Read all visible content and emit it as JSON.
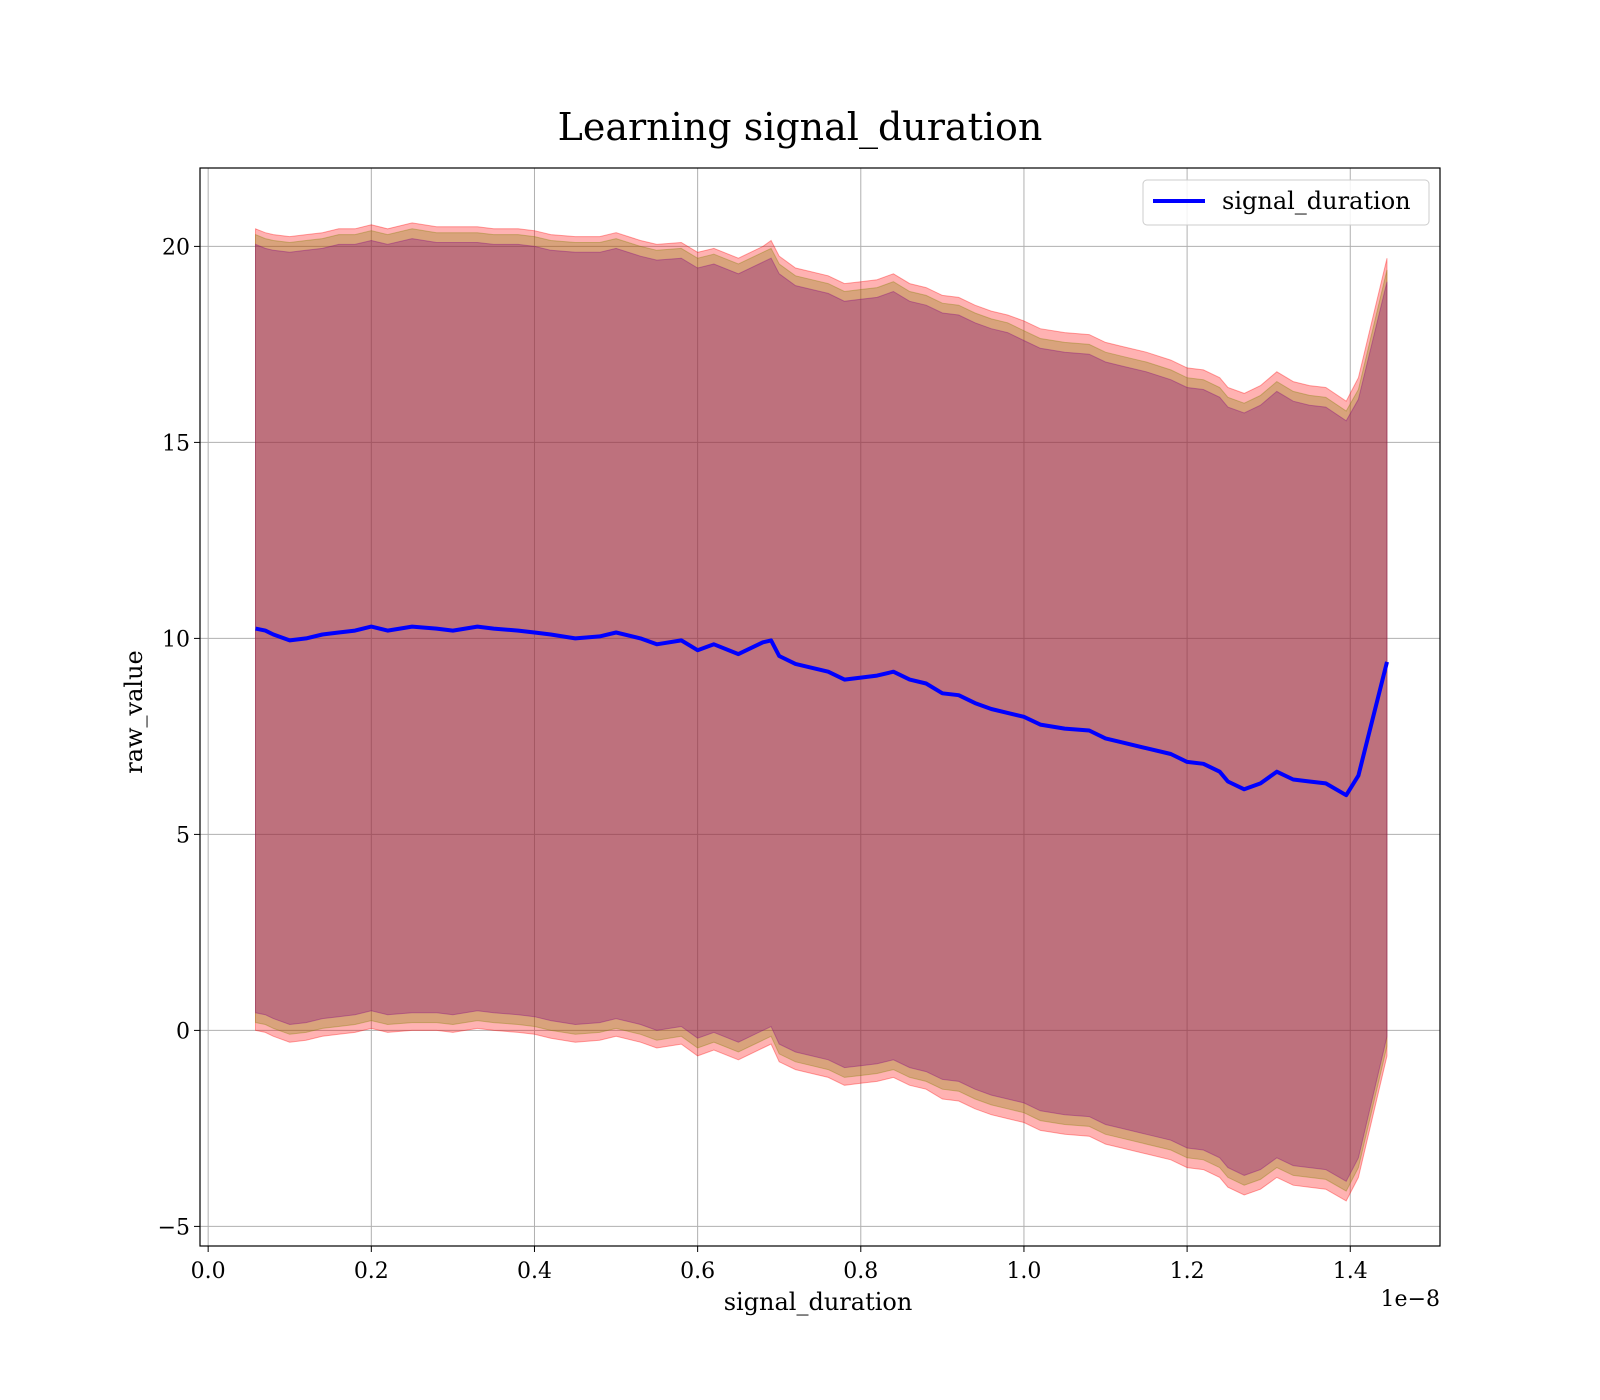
{
  "chart_data": {
    "type": "line",
    "title": "Learning signal_duration",
    "xlabel": "signal_duration",
    "ylabel": "raw_value",
    "x_multiplier_label": "1e−8",
    "xlim": [
      -0.01,
      1.51
    ],
    "ylim": [
      -5.5,
      22.0
    ],
    "grid": true,
    "legend_position": "top-right",
    "x_ticks": [
      {
        "v": 0.0,
        "label": "0.0"
      },
      {
        "v": 0.2,
        "label": "0.2"
      },
      {
        "v": 0.4,
        "label": "0.4"
      },
      {
        "v": 0.6,
        "label": "0.6"
      },
      {
        "v": 0.8,
        "label": "0.8"
      },
      {
        "v": 1.0,
        "label": "1.0"
      },
      {
        "v": 1.2,
        "label": "1.2"
      },
      {
        "v": 1.4,
        "label": "1.4"
      }
    ],
    "y_ticks": [
      {
        "v": -5,
        "label": "−5"
      },
      {
        "v": 0,
        "label": "0"
      },
      {
        "v": 5,
        "label": "5"
      },
      {
        "v": 10,
        "label": "10"
      },
      {
        "v": 15,
        "label": "15"
      },
      {
        "v": 20,
        "label": "20"
      }
    ],
    "series": [
      {
        "name": "signal_duration",
        "color": "#0000ff",
        "x": [
          0.058,
          0.07,
          0.08,
          0.1,
          0.12,
          0.14,
          0.16,
          0.18,
          0.2,
          0.22,
          0.25,
          0.28,
          0.3,
          0.33,
          0.35,
          0.38,
          0.4,
          0.42,
          0.45,
          0.48,
          0.5,
          0.53,
          0.55,
          0.58,
          0.6,
          0.62,
          0.65,
          0.68,
          0.69,
          0.7,
          0.72,
          0.74,
          0.76,
          0.78,
          0.8,
          0.82,
          0.84,
          0.86,
          0.88,
          0.9,
          0.92,
          0.94,
          0.96,
          0.98,
          1.0,
          1.02,
          1.05,
          1.08,
          1.1,
          1.12,
          1.15,
          1.18,
          1.2,
          1.22,
          1.24,
          1.25,
          1.27,
          1.29,
          1.31,
          1.33,
          1.35,
          1.37,
          1.395,
          1.41,
          1.445
        ],
        "y": [
          10.25,
          10.2,
          10.1,
          9.95,
          10.0,
          10.1,
          10.15,
          10.2,
          10.3,
          10.2,
          10.3,
          10.25,
          10.2,
          10.3,
          10.25,
          10.2,
          10.15,
          10.1,
          10.0,
          10.05,
          10.15,
          10.0,
          9.85,
          9.95,
          9.7,
          9.85,
          9.6,
          9.9,
          9.95,
          9.55,
          9.35,
          9.25,
          9.15,
          8.95,
          9.0,
          9.05,
          9.15,
          8.95,
          8.85,
          8.6,
          8.55,
          8.35,
          8.2,
          8.1,
          8.0,
          7.8,
          7.7,
          7.65,
          7.45,
          7.35,
          7.2,
          7.05,
          6.85,
          6.8,
          6.6,
          6.35,
          6.15,
          6.3,
          6.6,
          6.4,
          6.35,
          6.3,
          6.0,
          6.5,
          9.4
        ]
      }
    ],
    "bands": [
      {
        "color": "#ff0000",
        "opacity": 0.3,
        "upper": [
          20.45,
          20.35,
          20.3,
          20.25,
          20.3,
          20.35,
          20.45,
          20.45,
          20.55,
          20.45,
          20.6,
          20.5,
          20.5,
          20.5,
          20.45,
          20.45,
          20.4,
          20.3,
          20.25,
          20.25,
          20.35,
          20.15,
          20.05,
          20.1,
          19.85,
          19.95,
          19.7,
          20.0,
          20.15,
          19.75,
          19.45,
          19.35,
          19.25,
          19.05,
          19.1,
          19.15,
          19.3,
          19.05,
          18.95,
          18.75,
          18.7,
          18.5,
          18.35,
          18.25,
          18.1,
          17.9,
          17.8,
          17.75,
          17.55,
          17.45,
          17.3,
          17.1,
          16.9,
          16.85,
          16.65,
          16.4,
          16.25,
          16.45,
          16.8,
          16.55,
          16.45,
          16.4,
          16.05,
          16.65,
          19.7
        ],
        "lower": [
          0.0,
          -0.05,
          -0.15,
          -0.3,
          -0.25,
          -0.15,
          -0.1,
          -0.05,
          0.05,
          -0.05,
          0.0,
          0.0,
          -0.05,
          0.05,
          0.0,
          -0.05,
          -0.1,
          -0.2,
          -0.3,
          -0.25,
          -0.15,
          -0.3,
          -0.45,
          -0.35,
          -0.65,
          -0.5,
          -0.75,
          -0.45,
          -0.35,
          -0.8,
          -1.0,
          -1.1,
          -1.2,
          -1.4,
          -1.35,
          -1.3,
          -1.2,
          -1.4,
          -1.5,
          -1.75,
          -1.8,
          -2.0,
          -2.15,
          -2.25,
          -2.35,
          -2.55,
          -2.65,
          -2.7,
          -2.9,
          -3.0,
          -3.15,
          -3.3,
          -3.5,
          -3.55,
          -3.75,
          -4.0,
          -4.2,
          -4.05,
          -3.75,
          -3.95,
          -4.0,
          -4.05,
          -4.35,
          -3.75,
          -0.65
        ]
      },
      {
        "color": "#808000",
        "opacity": 0.3,
        "upper": [
          20.3,
          20.2,
          20.15,
          20.1,
          20.15,
          20.2,
          20.3,
          20.3,
          20.4,
          20.3,
          20.45,
          20.35,
          20.35,
          20.35,
          20.3,
          20.3,
          20.25,
          20.15,
          20.1,
          20.1,
          20.2,
          20.0,
          19.9,
          19.95,
          19.7,
          19.8,
          19.55,
          19.85,
          19.95,
          19.55,
          19.25,
          19.15,
          19.05,
          18.85,
          18.9,
          18.95,
          19.1,
          18.85,
          18.75,
          18.55,
          18.5,
          18.3,
          18.15,
          18.05,
          17.85,
          17.65,
          17.55,
          17.5,
          17.3,
          17.2,
          17.05,
          16.85,
          16.65,
          16.6,
          16.4,
          16.15,
          16.0,
          16.2,
          16.55,
          16.3,
          16.2,
          16.15,
          15.8,
          16.35,
          19.4
        ],
        "lower": [
          0.2,
          0.15,
          0.05,
          -0.1,
          -0.05,
          0.05,
          0.1,
          0.15,
          0.25,
          0.15,
          0.2,
          0.2,
          0.15,
          0.25,
          0.2,
          0.15,
          0.1,
          0.0,
          -0.1,
          -0.05,
          0.05,
          -0.1,
          -0.25,
          -0.15,
          -0.45,
          -0.3,
          -0.55,
          -0.25,
          -0.15,
          -0.6,
          -0.8,
          -0.9,
          -1.0,
          -1.2,
          -1.15,
          -1.1,
          -1.0,
          -1.2,
          -1.3,
          -1.5,
          -1.55,
          -1.75,
          -1.9,
          -2.0,
          -2.1,
          -2.3,
          -2.4,
          -2.45,
          -2.65,
          -2.75,
          -2.9,
          -3.05,
          -3.25,
          -3.3,
          -3.5,
          -3.75,
          -3.95,
          -3.8,
          -3.5,
          -3.7,
          -3.75,
          -3.8,
          -4.1,
          -3.5,
          -0.4
        ]
      },
      {
        "color": "#800080",
        "opacity": 0.3,
        "upper": [
          20.05,
          19.95,
          19.9,
          19.85,
          19.9,
          19.95,
          20.05,
          20.05,
          20.15,
          20.05,
          20.2,
          20.1,
          20.1,
          20.1,
          20.05,
          20.05,
          20.0,
          19.9,
          19.85,
          19.85,
          19.95,
          19.75,
          19.65,
          19.7,
          19.45,
          19.55,
          19.3,
          19.6,
          19.7,
          19.3,
          19.0,
          18.9,
          18.8,
          18.6,
          18.65,
          18.7,
          18.85,
          18.6,
          18.5,
          18.3,
          18.25,
          18.05,
          17.9,
          17.8,
          17.6,
          17.4,
          17.3,
          17.25,
          17.05,
          16.95,
          16.8,
          16.6,
          16.4,
          16.35,
          16.15,
          15.9,
          15.75,
          15.95,
          16.3,
          16.05,
          15.95,
          15.9,
          15.55,
          16.1,
          19.1
        ],
        "lower": [
          0.45,
          0.4,
          0.3,
          0.15,
          0.2,
          0.3,
          0.35,
          0.4,
          0.5,
          0.4,
          0.45,
          0.45,
          0.4,
          0.5,
          0.45,
          0.4,
          0.35,
          0.25,
          0.15,
          0.2,
          0.3,
          0.15,
          0.0,
          0.1,
          -0.2,
          -0.05,
          -0.3,
          0.0,
          0.1,
          -0.35,
          -0.55,
          -0.65,
          -0.75,
          -0.95,
          -0.9,
          -0.85,
          -0.75,
          -0.95,
          -1.05,
          -1.25,
          -1.3,
          -1.5,
          -1.65,
          -1.75,
          -1.85,
          -2.05,
          -2.15,
          -2.2,
          -2.4,
          -2.5,
          -2.65,
          -2.8,
          -3.0,
          -3.05,
          -3.25,
          -3.5,
          -3.7,
          -3.55,
          -3.25,
          -3.45,
          -3.5,
          -3.55,
          -3.85,
          -3.25,
          -0.15
        ]
      }
    ]
  }
}
